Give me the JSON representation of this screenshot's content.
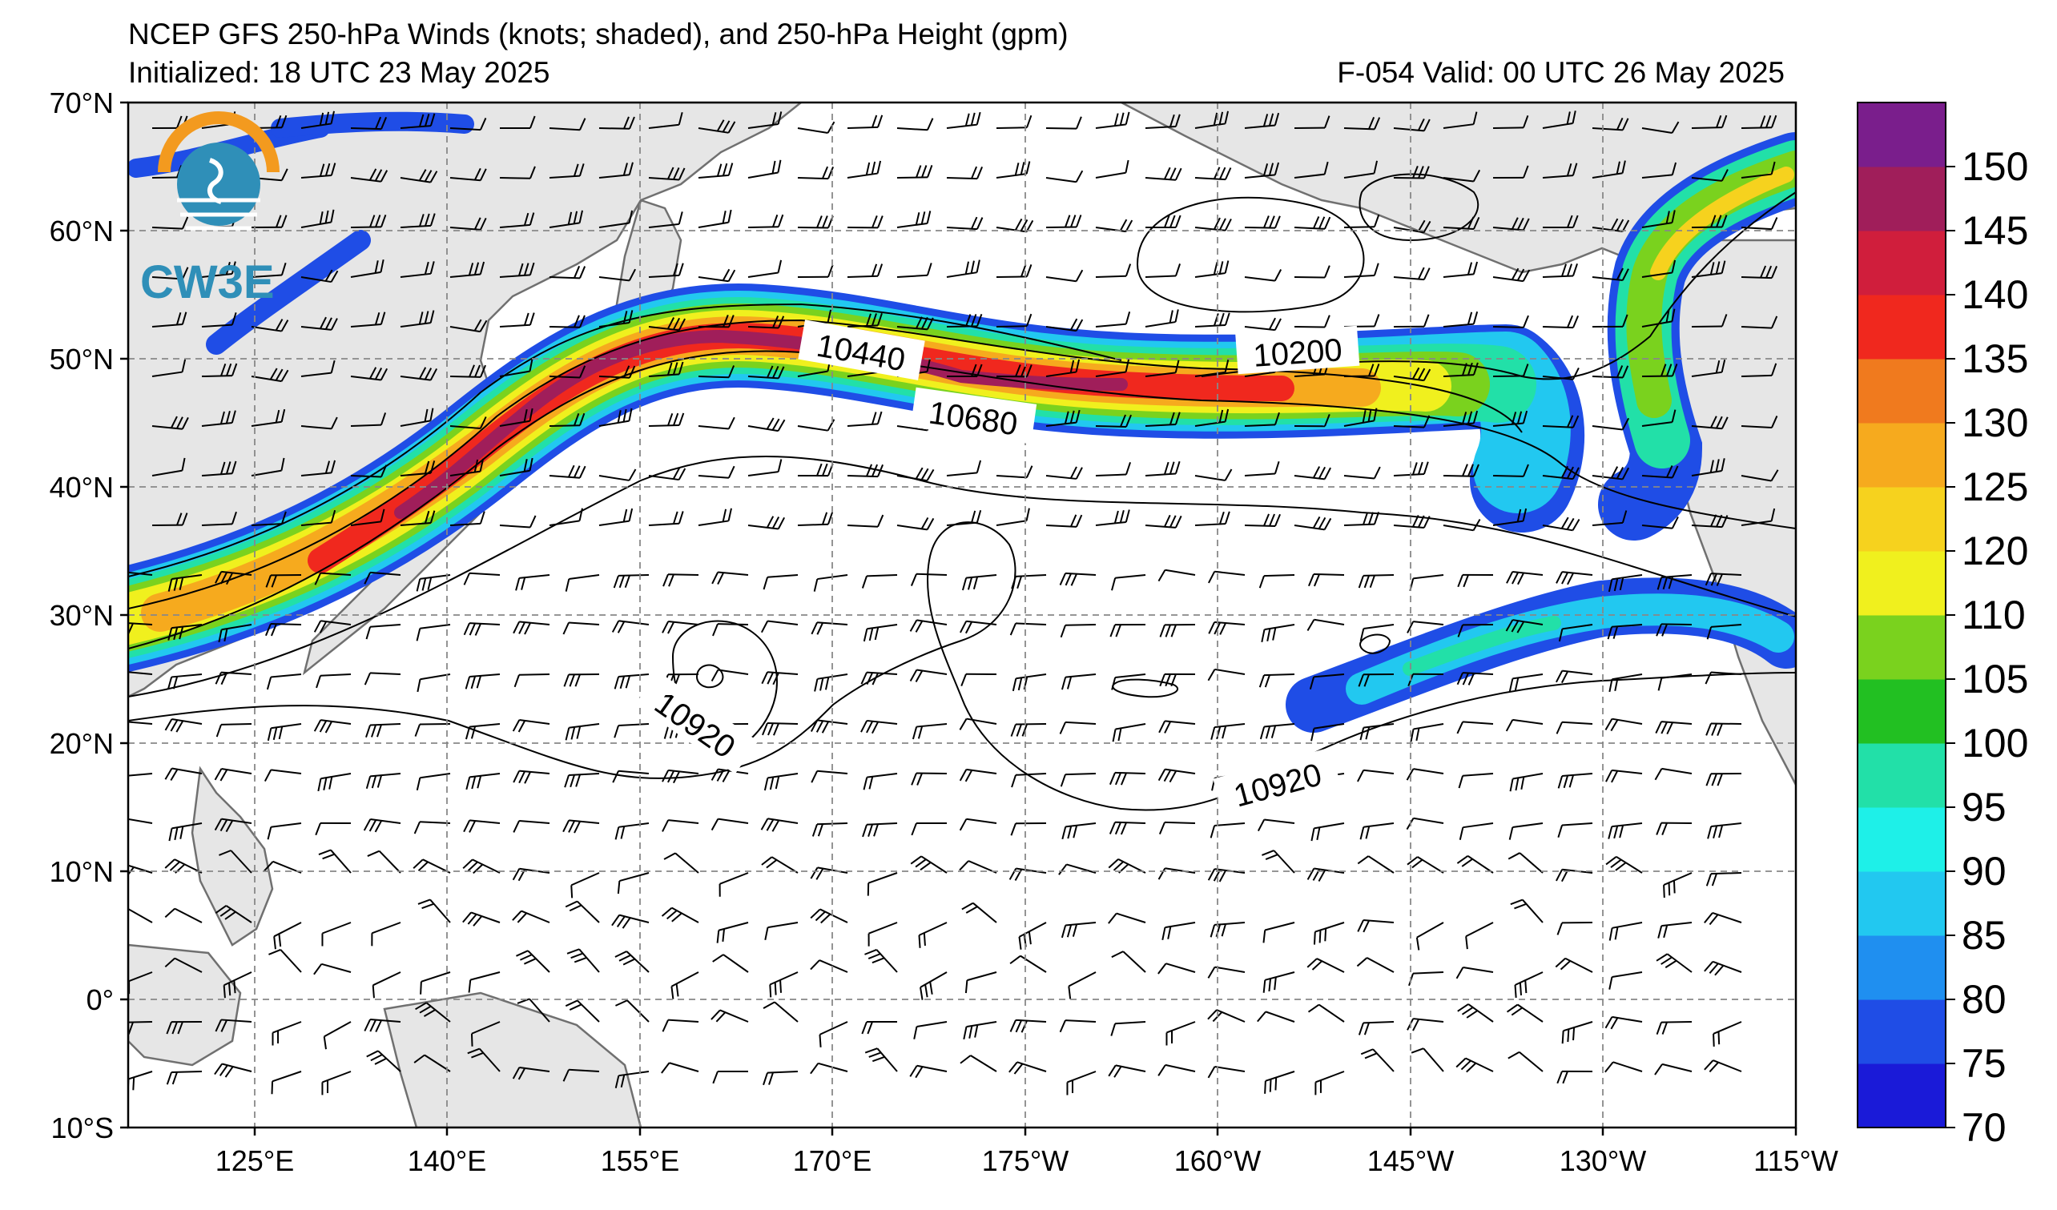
{
  "header": {
    "title": "NCEP GFS 250-hPa Winds (knots; shaded), and 250-hPa Height (gpm)",
    "initialized": "Initialized: 18 UTC 23 May 2025",
    "forecast": "F-054  Valid: 00 UTC 26 May 2025"
  },
  "logo": {
    "text": "CW3E"
  },
  "axes": {
    "lat_labels": [
      "70°N",
      "60°N",
      "50°N",
      "40°N",
      "30°N",
      "20°N",
      "10°N",
      "0°",
      "10°S"
    ],
    "lon_labels": [
      "125°E",
      "140°E",
      "155°E",
      "170°E",
      "175°W",
      "160°W",
      "145°W",
      "130°W",
      "115°W"
    ]
  },
  "colorbar": {
    "ticks": [
      "70",
      "75",
      "80",
      "85",
      "90",
      "95",
      "100",
      "105",
      "110",
      "120",
      "125",
      "130",
      "135",
      "140",
      "145",
      "150"
    ],
    "colors": [
      "#1a1ad8",
      "#1f4de6",
      "#1f8ff0",
      "#22c8f0",
      "#1ef0e8",
      "#22e0a8",
      "#22c022",
      "#7ad21e",
      "#f0f01e",
      "#f6d21e",
      "#f6aa1e",
      "#f07a1e",
      "#f0281e",
      "#d01e3c",
      "#a01e5a",
      "#7a1e8c"
    ]
  },
  "contour_labels": [
    "10440",
    "10680",
    "10200",
    "10920",
    "10920"
  ],
  "map_colors": {
    "land": "#e6e6e6",
    "coast": "#707070",
    "grid": "#888888"
  }
}
